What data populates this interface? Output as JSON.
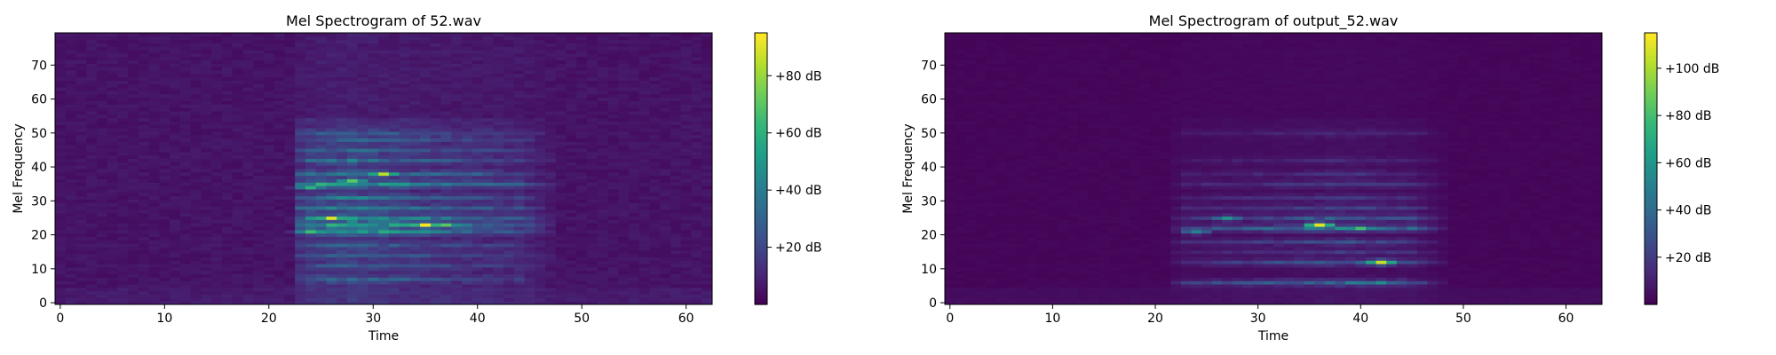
{
  "chart_data": [
    {
      "type": "heatmap",
      "title": "Mel Spectrogram of 52.wav",
      "xlabel": "Time",
      "ylabel": "Mel Frequency",
      "x_ticks": [
        0,
        10,
        20,
        30,
        40,
        50,
        60
      ],
      "y_ticks": [
        0,
        10,
        20,
        30,
        40,
        50,
        60,
        70
      ],
      "xlim": [
        -0.5,
        62.5
      ],
      "ylim": [
        -0.5,
        79.5
      ],
      "n_frames": 63,
      "n_mels": 80,
      "colormap": "viridis",
      "colorbar": {
        "min": 0,
        "max": 95,
        "ticks": [
          20,
          40,
          60,
          80
        ],
        "tick_labels": [
          "+20 dB",
          "+40 dB",
          "+60 dB",
          "+80 dB"
        ]
      },
      "background_db": 3,
      "noise_db": 4,
      "sound_region": {
        "t_start": 22.5,
        "t_end": 47,
        "peak_t": 28,
        "decay": 18,
        "base_db": 8
      },
      "harmonics": [
        {
          "mel": 7,
          "db": 20
        },
        {
          "mel": 11,
          "db": 14
        },
        {
          "mel": 14,
          "db": 18
        },
        {
          "mel": 17,
          "db": 16
        },
        {
          "mel": 21,
          "db": 40
        },
        {
          "mel": 23,
          "db": 42
        },
        {
          "mel": 25,
          "db": 38
        },
        {
          "mel": 28,
          "db": 30
        },
        {
          "mel": 31,
          "db": 26
        },
        {
          "mel": 35,
          "db": 42
        },
        {
          "mel": 38,
          "db": 30
        },
        {
          "mel": 42,
          "db": 22
        },
        {
          "mel": 45,
          "db": 18
        },
        {
          "mel": 48,
          "db": 16
        },
        {
          "mel": 50,
          "db": 14
        }
      ],
      "hotspots": [
        {
          "t": 24,
          "mel": 21,
          "db": 65
        },
        {
          "t": 26,
          "mel": 25,
          "db": 90
        },
        {
          "t": 28,
          "mel": 36,
          "db": 70
        },
        {
          "t": 31,
          "mel": 38,
          "db": 85
        },
        {
          "t": 35,
          "mel": 23,
          "db": 95
        },
        {
          "t": 37,
          "mel": 23,
          "db": 70
        },
        {
          "t": 24,
          "mel": 34,
          "db": 60
        }
      ]
    },
    {
      "type": "heatmap",
      "title": "Mel Spectrogram of output_52.wav",
      "xlabel": "Time",
      "ylabel": "Mel Frequency",
      "x_ticks": [
        0,
        10,
        20,
        30,
        40,
        50,
        60
      ],
      "y_ticks": [
        0,
        10,
        20,
        30,
        40,
        50,
        60,
        70
      ],
      "xlim": [
        -0.5,
        63.5
      ],
      "ylim": [
        -0.5,
        79.5
      ],
      "n_frames": 64,
      "n_mels": 80,
      "colormap": "viridis",
      "colorbar": {
        "min": 0,
        "max": 115,
        "ticks": [
          20,
          40,
          60,
          80,
          100
        ],
        "tick_labels": [
          "+20 dB",
          "+40 dB",
          "+60 dB",
          "+80 dB",
          "+100 dB"
        ]
      },
      "background_db": 1,
      "noise_db": 1.5,
      "sound_region": {
        "t_start": 22,
        "t_end": 48,
        "peak_t": 38,
        "decay": 20,
        "base_db": 3
      },
      "harmonics": [
        {
          "mel": 6,
          "db": 35
        },
        {
          "mel": 12,
          "db": 28
        },
        {
          "mel": 15,
          "db": 14
        },
        {
          "mel": 18,
          "db": 22
        },
        {
          "mel": 22,
          "db": 45
        },
        {
          "mel": 25,
          "db": 28
        },
        {
          "mel": 28,
          "db": 18
        },
        {
          "mel": 31,
          "db": 14
        },
        {
          "mel": 35,
          "db": 16
        },
        {
          "mel": 38,
          "db": 12
        },
        {
          "mel": 42,
          "db": 8
        },
        {
          "mel": 50,
          "db": 8
        }
      ],
      "hotspots": [
        {
          "t": 36,
          "mel": 23,
          "db": 110
        },
        {
          "t": 42,
          "mel": 12,
          "db": 105
        },
        {
          "t": 40,
          "mel": 22,
          "db": 80
        },
        {
          "t": 27,
          "mel": 25,
          "db": 60
        },
        {
          "t": 24,
          "mel": 21,
          "db": 50
        },
        {
          "t": 42,
          "mel": 6,
          "db": 55
        }
      ]
    }
  ]
}
